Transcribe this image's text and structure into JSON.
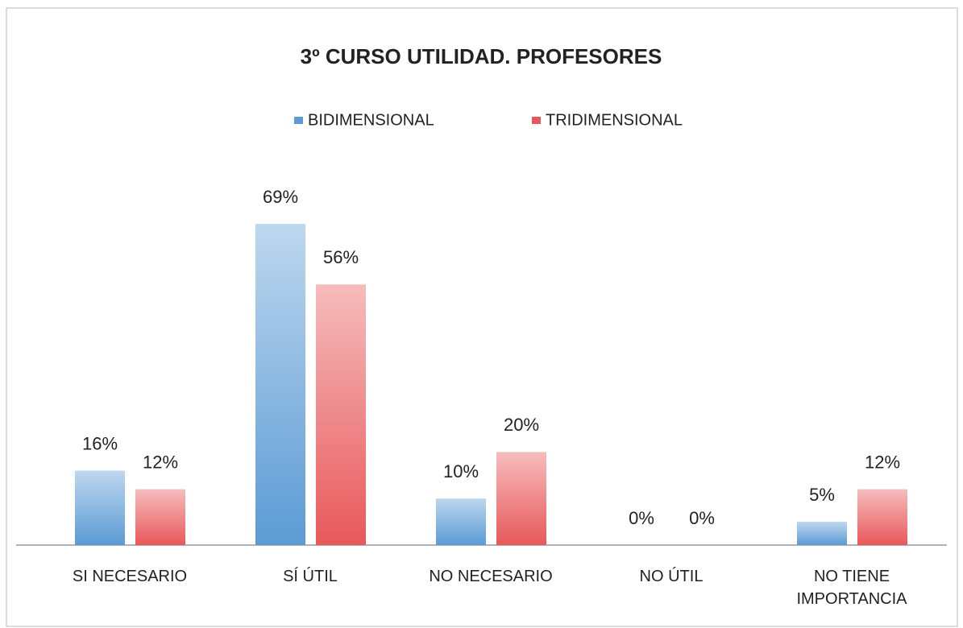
{
  "chart_data": {
    "type": "bar",
    "title": "3º  CURSO UTILIDAD. PROFESORES",
    "categories": [
      "SI NECESARIO",
      "SÍ ÚTIL",
      "NO NECESARIO",
      "NO ÚTIL",
      "NO TIENE IMPORTANCIA"
    ],
    "series": [
      {
        "name": "BIDIMENSIONAL",
        "color": "#5b9bd5",
        "values": [
          16,
          69,
          10,
          0,
          5
        ],
        "value_labels": [
          "16%",
          "69%",
          "10%",
          "0%",
          "5%"
        ]
      },
      {
        "name": "TRIDIMENSIONAL",
        "color": "#e8585a",
        "values": [
          12,
          56,
          20,
          0,
          12
        ],
        "value_labels": [
          "12%",
          "56%",
          "20%",
          "0%",
          "12%"
        ]
      }
    ],
    "legend": "top"
  }
}
